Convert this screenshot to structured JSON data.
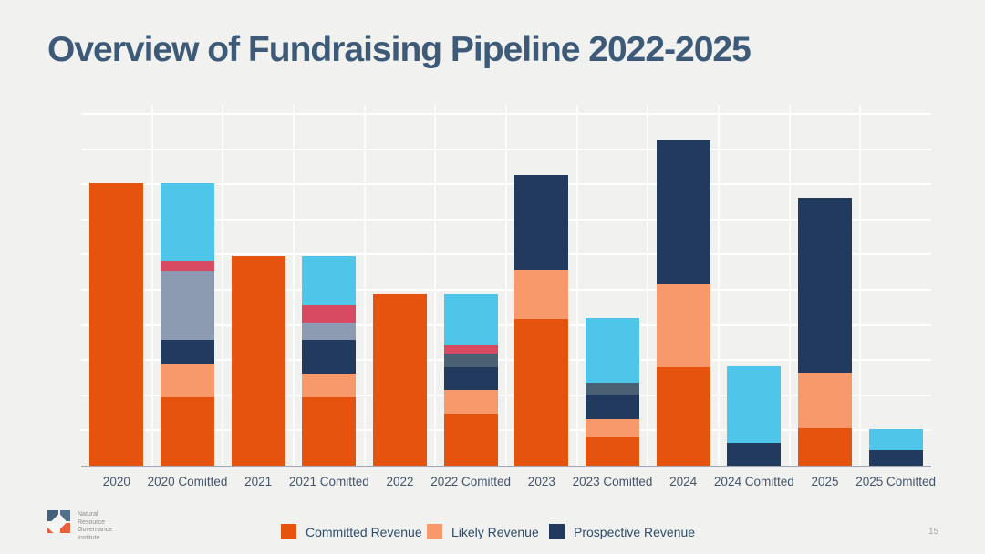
{
  "title": "Overview of Fundraising Pipeline 2022-2025",
  "page_number": "15",
  "logo": {
    "text": "Natural\nResource\nGovernance\nInstitute"
  },
  "legend": {
    "items": [
      {
        "label": "Committed Revenue",
        "color": "#e5530f"
      },
      {
        "label": "Likely Revenue",
        "color": "#f8996b"
      },
      {
        "label": "Prospective Revenue",
        "color": "#213a5e"
      }
    ]
  },
  "chart_data": {
    "type": "bar",
    "subtype": "stacked-vertical",
    "title": "",
    "xlabel": "",
    "ylabel": "",
    "y_axis": {
      "tick_labels_visible": false,
      "gridlines": 10,
      "note": "y-axis is unlabeled; values below are in gridline units (baseline 0, one unit per gridline)",
      "ylim": [
        0,
        10.3
      ]
    },
    "categories": [
      "2020",
      "2020 Comitted",
      "2021",
      "2021 Comitted",
      "2022",
      "2022 Comitted",
      "2023",
      "2023 Comitted",
      "2024",
      "2024 Comitted",
      "2025",
      "2025 Comitted"
    ],
    "series": [
      {
        "name": "Committed Revenue",
        "key": "committed",
        "color": "#e5530f",
        "in_legend": true,
        "values": [
          8.03,
          1.94,
          5.96,
          1.94,
          4.87,
          1.48,
          4.17,
          0.8,
          2.8,
          0,
          1.06,
          0
        ]
      },
      {
        "name": "Likely Revenue",
        "key": "likely",
        "color": "#f8996b",
        "in_legend": true,
        "values": [
          0,
          0.93,
          0,
          0.67,
          0,
          0.67,
          1.4,
          0.52,
          2.36,
          0,
          1.58,
          0
        ]
      },
      {
        "name": "Prospective Revenue",
        "key": "prospective",
        "color": "#213a5e",
        "in_legend": true,
        "values": [
          0,
          0.7,
          0,
          0.96,
          0,
          0.65,
          2.69,
          0.7,
          4.09,
          0.65,
          4.97,
          0.44
        ]
      },
      {
        "name": "unlabeled blue-gray segment",
        "key": "bluegray",
        "color": "#8c9ab2",
        "in_legend": false,
        "values": [
          0,
          1.97,
          0,
          0.49,
          0,
          0,
          0,
          0,
          0,
          0,
          0,
          0
        ]
      },
      {
        "name": "unlabeled slate segment",
        "key": "slate",
        "color": "#4a6073",
        "in_legend": false,
        "values": [
          0,
          0,
          0,
          0,
          0,
          0.39,
          0,
          0.34,
          0,
          0,
          0,
          0
        ]
      },
      {
        "name": "unlabeled crimson segment",
        "key": "crimson",
        "color": "#d84a61",
        "in_legend": false,
        "values": [
          0,
          0.28,
          0,
          0.49,
          0,
          0.23,
          0,
          0,
          0,
          0,
          0,
          0
        ]
      },
      {
        "name": "unlabeled light-blue segment",
        "key": "lightblue",
        "color": "#4ec6e9",
        "in_legend": false,
        "values": [
          0,
          2.2,
          0,
          1.4,
          0,
          1.45,
          0,
          1.84,
          0,
          2.18,
          0,
          0.6
        ]
      }
    ],
    "legend_position": "bottom"
  }
}
